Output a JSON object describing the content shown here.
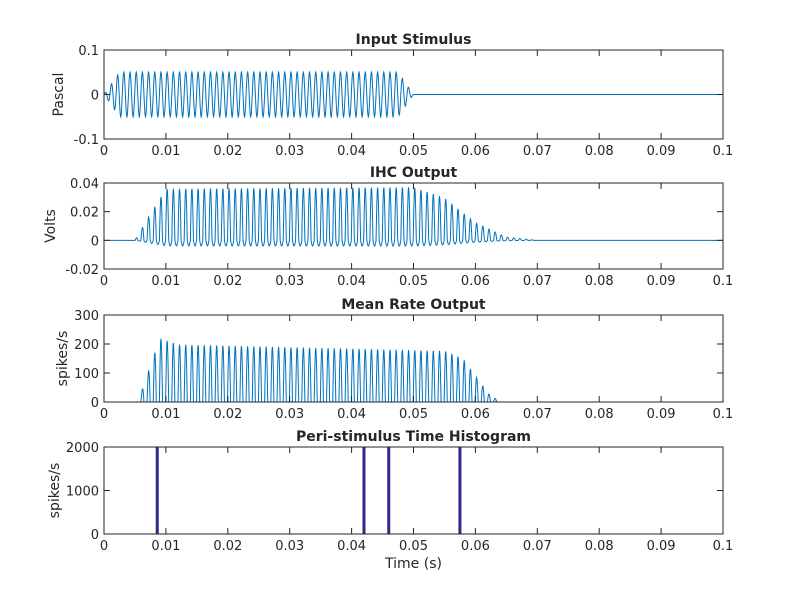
{
  "chart_data": [
    {
      "type": "line",
      "title": "Input Stimulus",
      "xlabel": "",
      "ylabel": "Pascal",
      "xlim": [
        0,
        0.1
      ],
      "ylim": [
        -0.1,
        0.1
      ],
      "yticks": [
        -0.1,
        0,
        0.1
      ],
      "ytick_labels": [
        "-0.1",
        "0",
        "0.1"
      ],
      "signal": {
        "tone_hz": 1000,
        "pos_amp": 0.05,
        "neg_amp": 0.05,
        "envelope": [
          [
            0,
            0
          ],
          [
            0.0025,
            1
          ],
          [
            0.0475,
            1
          ],
          [
            0.05,
            0
          ],
          [
            0.1,
            0
          ]
        ]
      },
      "color": "#0072BD"
    },
    {
      "type": "line",
      "title": "IHC Output",
      "xlabel": "",
      "ylabel": "Volts",
      "xlim": [
        0,
        0.1
      ],
      "ylim": [
        -0.02,
        0.04
      ],
      "yticks": [
        -0.02,
        0,
        0.02,
        0.04
      ],
      "ytick_labels": [
        "-0.02",
        "0",
        "0.02",
        "0.04"
      ],
      "signal": {
        "tone_hz": 1000,
        "pos_amp": 0.037,
        "neg_amp": 0.004,
        "envelope": [
          [
            0,
            0
          ],
          [
            0.005,
            0
          ],
          [
            0.0075,
            0.5
          ],
          [
            0.01,
            0.97
          ],
          [
            0.05,
            1
          ],
          [
            0.055,
            0.8
          ],
          [
            0.06,
            0.33
          ],
          [
            0.065,
            0.06
          ],
          [
            0.07,
            0
          ],
          [
            0.1,
            0
          ]
        ]
      },
      "color": "#0072BD"
    },
    {
      "type": "line",
      "title": "Mean Rate Output",
      "xlabel": "",
      "ylabel": "spikes/s",
      "xlim": [
        0,
        0.1
      ],
      "ylim": [
        0,
        300
      ],
      "yticks": [
        0,
        100,
        200,
        300
      ],
      "ytick_labels": [
        "0",
        "100",
        "200",
        "300"
      ],
      "signal": {
        "tone_hz": 1000,
        "pos_amp": 220,
        "neg_amp": 0,
        "envelope": [
          [
            0,
            0
          ],
          [
            0.0055,
            0
          ],
          [
            0.009,
            1
          ],
          [
            0.012,
            0.9
          ],
          [
            0.055,
            0.8
          ],
          [
            0.058,
            0.68
          ],
          [
            0.062,
            0.14
          ],
          [
            0.064,
            0
          ],
          [
            0.1,
            0
          ]
        ]
      },
      "color": "#0072BD"
    },
    {
      "type": "bar",
      "title": "Peri-stimulus Time Histogram",
      "xlabel": "Time (s)",
      "ylabel": "spikes/s",
      "xlim": [
        0,
        0.1
      ],
      "ylim": [
        0,
        2000
      ],
      "yticks": [
        0,
        1000,
        2000
      ],
      "ytick_labels": [
        "0",
        "1000",
        "2000"
      ],
      "spike_bins_s": [
        0.0086,
        0.042,
        0.046,
        0.0575
      ],
      "bar_value_note": "exceeds axis",
      "bar_values": [
        2500,
        2500,
        2500,
        2500
      ],
      "color": "#2E2A8C"
    }
  ],
  "xtick_labels": [
    "0",
    "0.01",
    "0.02",
    "0.03",
    "0.04",
    "0.05",
    "0.06",
    "0.07",
    "0.08",
    "0.09",
    "0.1"
  ]
}
